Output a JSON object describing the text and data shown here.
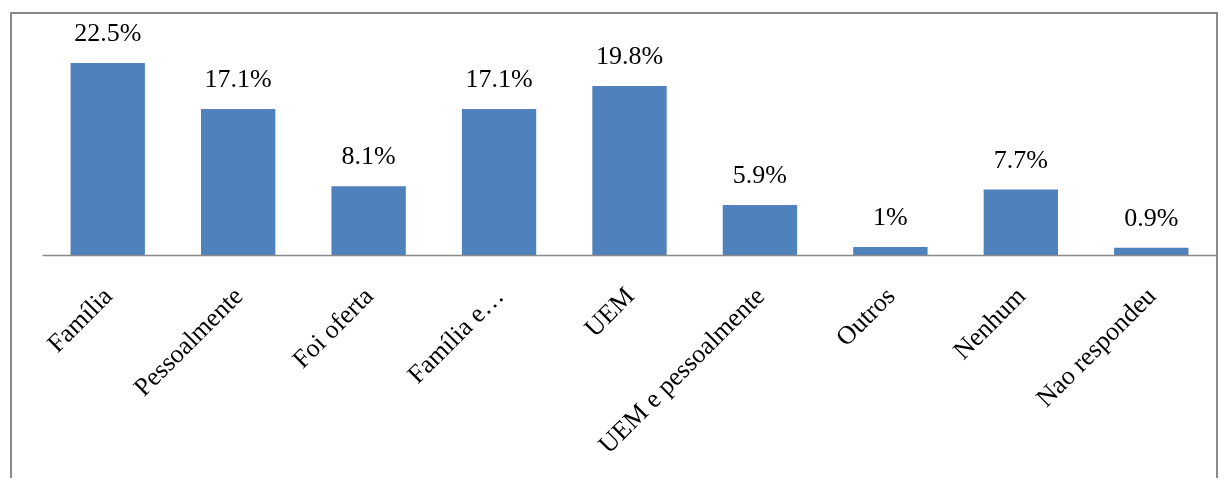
{
  "chart_data": {
    "type": "bar",
    "categories": [
      "Família",
      "Pessoalmente",
      "Foi oferta",
      "Família e…",
      "UEM",
      "UEM e pessoalmente",
      "Outros",
      "Nenhum",
      "Nao respondeu"
    ],
    "values": [
      22.5,
      17.1,
      8.1,
      17.1,
      19.8,
      5.9,
      1,
      7.7,
      0.9
    ],
    "value_labels": [
      "22.5%",
      "17.1%",
      "8.1%",
      "17.1%",
      "19.8%",
      "5.9%",
      "1%",
      "7.7%",
      "0.9%"
    ],
    "color": "#4f81bd"
  }
}
